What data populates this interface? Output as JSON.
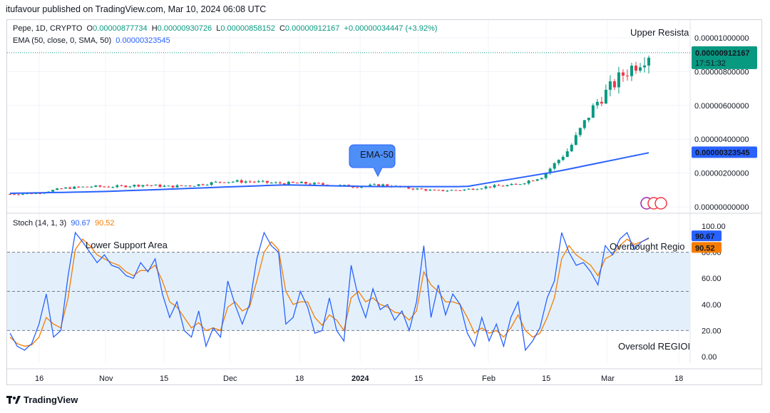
{
  "header": {
    "published": "itufavour published on TradingView.com, Mar 10, 2024 06:08 UTC"
  },
  "symbol_line": {
    "symbol": "Pepe, 1D, CRYPTO",
    "open_label": "O",
    "open": "0.00000877734",
    "high_label": "H",
    "high": "0.00000930726",
    "low_label": "L",
    "low": "0.00000858152",
    "close_label": "C",
    "close": "0.00000912167",
    "change": "+0.00000034447 (+3.92%)"
  },
  "ema_line": {
    "label": "EMA (50, close, 0, SMA, 50)",
    "value": "0.00000323545"
  },
  "stoch_line": {
    "label": "Stoch (14, 1, 3)",
    "k": "90.67",
    "d": "90.52"
  },
  "footer": {
    "brand": "TradingView"
  },
  "colors": {
    "up": "#089981",
    "down": "#f23645",
    "ema": "#2962ff",
    "stoch_k": "#2962ff",
    "stoch_d": "#f57c00",
    "band": "#e3f0fc",
    "callout": "#4e8ef7"
  },
  "chart_data": [
    {
      "type": "candlestick",
      "symbol": "Pepe, 1D, CRYPTO",
      "y_ticks": [
        "0.00001000000",
        "0.00000800000",
        "0.00000600000",
        "0.00000400000",
        "0.00000200000",
        "0.00000000000"
      ],
      "ylim": [
        0,
        1.08e-05
      ],
      "x_ticks": [
        "16",
        "Nov",
        "15",
        "Dec",
        "18",
        "2024",
        "15",
        "Feb",
        "15",
        "Mar",
        "18"
      ],
      "price_label": "0.00000912167",
      "countdown": "17:51:32",
      "ema_label": "0.00000323545",
      "annotations": {
        "upper": "Upper Resista",
        "callout": "EMA-50"
      },
      "series": [
        {
          "name": "Pepe",
          "x": [
            "2023-10-08",
            "2023-10-15",
            "2023-10-22",
            "2023-10-29",
            "2023-11-05",
            "2023-11-12",
            "2023-11-19",
            "2023-11-26",
            "2023-12-03",
            "2023-12-10",
            "2023-12-17",
            "2023-12-24",
            "2023-12-31",
            "2024-01-07",
            "2024-01-14",
            "2024-01-21",
            "2024-01-28",
            "2024-02-04",
            "2024-02-11",
            "2024-02-18",
            "2024-02-25",
            "2024-03-01",
            "2024-03-04",
            "2024-03-07",
            "2024-03-10"
          ],
          "close": [
            7.5e-07,
            8e-07,
            1.1e-06,
            1.2e-06,
            1.2e-06,
            1.3e-06,
            1.2e-06,
            1.3e-06,
            1.5e-06,
            1.5e-06,
            1.4e-06,
            1.4e-06,
            1.3e-06,
            1.2e-06,
            1.3e-06,
            1.1e-06,
            9.5e-07,
            1e-06,
            1.2e-06,
            1.3e-06,
            1.8e-06,
            3.4e-06,
            6.1e-06,
            7.8e-06,
            9.1e-06
          ]
        },
        {
          "name": "EMA (50, close, 0, SMA, 50)",
          "x": [
            "2023-10-08",
            "2023-11-05",
            "2023-12-03",
            "2023-12-31",
            "2024-01-28",
            "2024-02-25",
            "2024-03-04",
            "2024-03-10"
          ],
          "values": [
            8e-07,
            9e-07,
            1.1e-06,
            1.3e-06,
            1.2e-06,
            1.2e-06,
            2.1e-06,
            3.2e-06
          ]
        }
      ]
    },
    {
      "type": "line",
      "title": "Stoch (14, 1, 3)",
      "y_ticks": [
        "100.00",
        "80.00",
        "60.00",
        "40.00",
        "20.00",
        "0.00"
      ],
      "ylim": [
        -5,
        105
      ],
      "band": [
        20,
        80
      ],
      "annotations": {
        "lower": "Lower Support Area",
        "overbought": "Overbought Regio",
        "oversold": "Oversold REGIOI"
      },
      "k_label": "90.67",
      "d_label": "90.52",
      "series": [
        {
          "name": "%K",
          "values": [
            18,
            8,
            5,
            10,
            25,
            48,
            15,
            20,
            62,
            95,
            88,
            80,
            72,
            78,
            70,
            68,
            62,
            60,
            72,
            65,
            75,
            48,
            30,
            42,
            20,
            15,
            35,
            8,
            22,
            15,
            58,
            40,
            25,
            40,
            75,
            95,
            85,
            80,
            25,
            30,
            50,
            38,
            18,
            20,
            45,
            20,
            12,
            70,
            45,
            30,
            52,
            36,
            40,
            28,
            35,
            20,
            42,
            85,
            30,
            55,
            32,
            48,
            40,
            18,
            8,
            30,
            12,
            25,
            8,
            30,
            42,
            5,
            12,
            22,
            45,
            58,
            95,
            80,
            70,
            72,
            65,
            55,
            85,
            78,
            90,
            95,
            82,
            88,
            91
          ]
        },
        {
          "name": "%D",
          "values": [
            15,
            10,
            8,
            9,
            15,
            30,
            25,
            22,
            45,
            82,
            90,
            85,
            78,
            75,
            72,
            70,
            65,
            62,
            66,
            66,
            70,
            58,
            42,
            38,
            30,
            22,
            26,
            20,
            22,
            20,
            38,
            42,
            35,
            38,
            58,
            80,
            88,
            82,
            50,
            40,
            42,
            42,
            30,
            24,
            32,
            28,
            20,
            45,
            50,
            42,
            45,
            40,
            38,
            34,
            33,
            28,
            35,
            65,
            55,
            50,
            42,
            42,
            40,
            30,
            18,
            22,
            18,
            20,
            15,
            22,
            32,
            20,
            15,
            18,
            30,
            45,
            75,
            85,
            78,
            74,
            70,
            62,
            75,
            78,
            85,
            90,
            86,
            88,
            90.5
          ]
        }
      ]
    }
  ]
}
